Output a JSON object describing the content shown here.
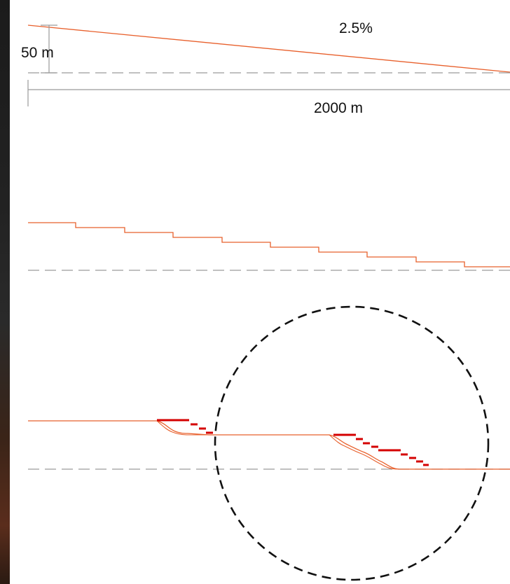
{
  "diagram": {
    "slope_label": "2.5%",
    "height_label": "50 m",
    "length_label": "2000 m"
  },
  "colors": {
    "profile_line": "#e8602c",
    "terrace_accent": "#d40000",
    "reference_dash": "#9a9a9a",
    "dimension_line": "#9a9a9a",
    "focus_circle": "#111111",
    "edge_photo": "#2a2a2a"
  }
}
